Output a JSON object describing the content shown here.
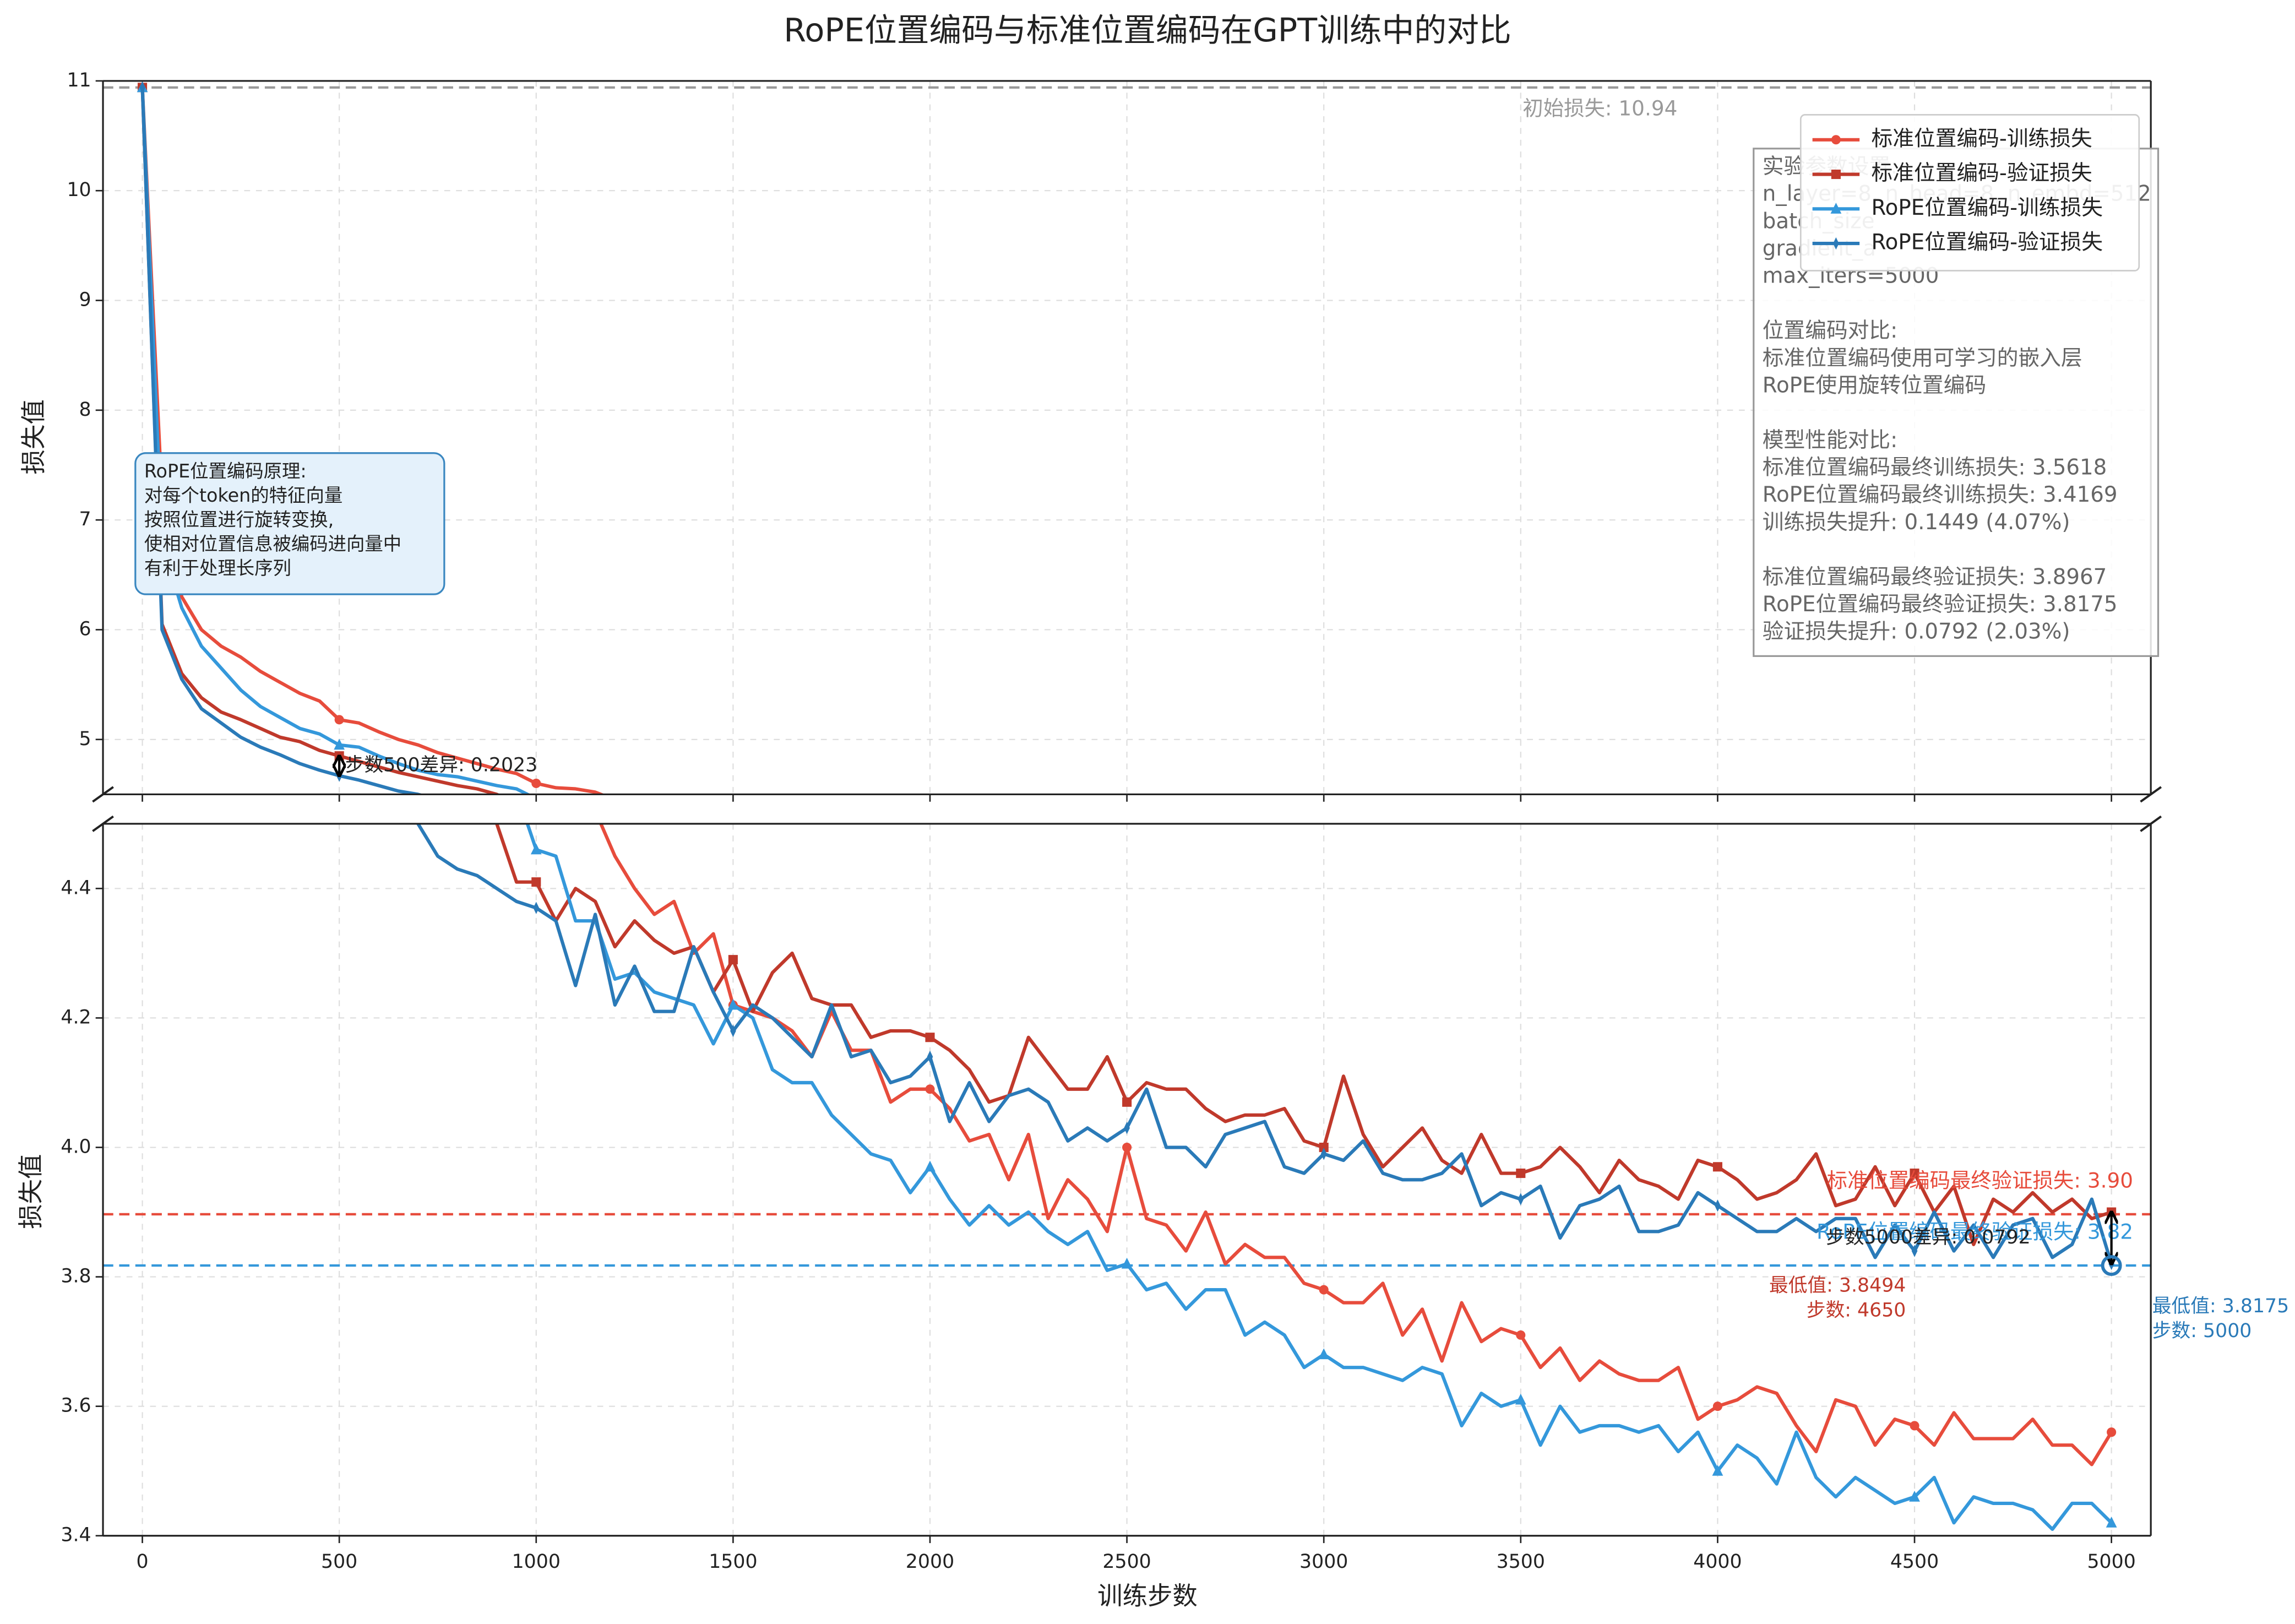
{
  "chart_data": {
    "type": "line",
    "title": "RoPE位置编码与标准位置编码在GPT训练中的对比",
    "xlabel": "训练步数",
    "ylabel": "损失值",
    "xlim": [
      -100,
      5100
    ],
    "xticks": [
      0,
      500,
      1000,
      1500,
      2000,
      2500,
      3000,
      3500,
      4000,
      4500,
      5000
    ],
    "panels": [
      {
        "ylim": [
          4.5,
          11
        ],
        "yticks": [
          5,
          6,
          7,
          8,
          9,
          10,
          11
        ]
      },
      {
        "ylim": [
          3.4,
          4.5
        ],
        "yticks": [
          3.4,
          3.6,
          3.8,
          {
            "value": 4,
            "label": "4.0"
          },
          4.2,
          4.4
        ]
      }
    ],
    "grid": true,
    "legend": "upper right",
    "x": [
      0,
      50,
      100,
      150,
      200,
      250,
      300,
      350,
      400,
      450,
      500,
      550,
      600,
      650,
      700,
      750,
      800,
      850,
      900,
      950,
      1000,
      1050,
      1100,
      1150,
      1200,
      1250,
      1300,
      1350,
      1400,
      1450,
      1500,
      1550,
      1600,
      1650,
      1700,
      1750,
      1800,
      1850,
      1900,
      1950,
      2000,
      2050,
      2100,
      2150,
      2200,
      2250,
      2300,
      2350,
      2400,
      2450,
      2500,
      2550,
      2600,
      2650,
      2700,
      2750,
      2800,
      2850,
      2900,
      2950,
      3000,
      3050,
      3100,
      3150,
      3200,
      3250,
      3300,
      3350,
      3400,
      3450,
      3500,
      3550,
      3600,
      3650,
      3700,
      3750,
      3800,
      3850,
      3900,
      3950,
      4000,
      4050,
      4100,
      4150,
      4200,
      4250,
      4300,
      4350,
      4400,
      4450,
      4500,
      4550,
      4600,
      4650,
      4700,
      4750,
      4800,
      4850,
      4900,
      4950,
      5000
    ],
    "series": [
      {
        "name": "标准位置编码-训练损失",
        "color": "#e74c3c",
        "marker": "o",
        "values": [
          10.94,
          7.2,
          6.3,
          6.0,
          5.85,
          5.75,
          5.62,
          5.52,
          5.42,
          5.35,
          5.18,
          5.15,
          5.07,
          5.0,
          4.95,
          4.88,
          4.83,
          4.78,
          4.73,
          4.69,
          4.6,
          4.56,
          4.55,
          4.52,
          4.45,
          4.4,
          4.36,
          4.38,
          4.3,
          4.33,
          4.22,
          4.21,
          4.2,
          4.18,
          4.14,
          4.21,
          4.15,
          4.15,
          4.07,
          4.09,
          4.09,
          4.06,
          4.01,
          4.02,
          3.95,
          4.02,
          3.89,
          3.95,
          3.92,
          3.87,
          4.0,
          3.89,
          3.88,
          3.84,
          3.9,
          3.82,
          3.85,
          3.83,
          3.83,
          3.79,
          3.78,
          3.76,
          3.76,
          3.79,
          3.71,
          3.75,
          3.67,
          3.76,
          3.7,
          3.72,
          3.71,
          3.66,
          3.69,
          3.64,
          3.67,
          3.65,
          3.64,
          3.64,
          3.66,
          3.58,
          3.6,
          3.61,
          3.63,
          3.62,
          3.57,
          3.53,
          3.61,
          3.6,
          3.54,
          3.58,
          3.57,
          3.54,
          3.59,
          3.55,
          3.55,
          3.55,
          3.58,
          3.54,
          3.54,
          3.51,
          3.56
        ]
      },
      {
        "name": "标准位置编码-验证损失",
        "color": "#c0392b",
        "marker": "s",
        "values": [
          10.94,
          6.05,
          5.6,
          5.38,
          5.25,
          5.18,
          5.1,
          5.02,
          4.98,
          4.9,
          4.85,
          4.8,
          4.75,
          4.7,
          4.66,
          4.62,
          4.58,
          4.55,
          4.5,
          4.41,
          4.41,
          4.35,
          4.4,
          4.38,
          4.31,
          4.35,
          4.32,
          4.3,
          4.31,
          4.24,
          4.29,
          4.21,
          4.27,
          4.3,
          4.23,
          4.22,
          4.22,
          4.17,
          4.18,
          4.18,
          4.17,
          4.15,
          4.12,
          4.07,
          4.08,
          4.17,
          4.13,
          4.09,
          4.09,
          4.14,
          4.07,
          4.1,
          4.09,
          4.09,
          4.06,
          4.04,
          4.05,
          4.05,
          4.06,
          4.01,
          4.0,
          4.11,
          4.02,
          3.97,
          4.0,
          4.03,
          3.98,
          3.96,
          4.02,
          3.96,
          3.96,
          3.97,
          4.0,
          3.97,
          3.93,
          3.98,
          3.95,
          3.94,
          3.92,
          3.98,
          3.97,
          3.95,
          3.92,
          3.93,
          3.95,
          3.99,
          3.91,
          3.92,
          3.97,
          3.91,
          3.96,
          3.9,
          3.94,
          3.85,
          3.92,
          3.9,
          3.93,
          3.9,
          3.92,
          3.89,
          3.9
        ]
      },
      {
        "name": "RoPE位置编码-训练损失",
        "color": "#3498db",
        "marker": "^",
        "values": [
          10.94,
          6.8,
          6.2,
          5.85,
          5.65,
          5.45,
          5.3,
          5.2,
          5.1,
          5.05,
          4.95,
          4.93,
          4.85,
          4.78,
          4.72,
          4.68,
          4.66,
          4.62,
          4.58,
          4.55,
          4.46,
          4.45,
          4.35,
          4.35,
          4.26,
          4.27,
          4.24,
          4.23,
          4.22,
          4.16,
          4.22,
          4.2,
          4.12,
          4.1,
          4.1,
          4.05,
          4.02,
          3.99,
          3.98,
          3.93,
          3.97,
          3.92,
          3.88,
          3.91,
          3.88,
          3.9,
          3.87,
          3.85,
          3.87,
          3.81,
          3.82,
          3.78,
          3.79,
          3.75,
          3.78,
          3.78,
          3.71,
          3.73,
          3.71,
          3.66,
          3.68,
          3.66,
          3.66,
          3.65,
          3.64,
          3.66,
          3.65,
          3.57,
          3.62,
          3.6,
          3.61,
          3.54,
          3.6,
          3.56,
          3.57,
          3.57,
          3.56,
          3.57,
          3.53,
          3.56,
          3.5,
          3.54,
          3.52,
          3.48,
          3.56,
          3.49,
          3.46,
          3.49,
          3.47,
          3.45,
          3.46,
          3.49,
          3.42,
          3.46,
          3.45,
          3.45,
          3.44,
          3.41,
          3.45,
          3.45,
          3.42
        ]
      },
      {
        "name": "RoPE位置编码-验证损失",
        "color": "#2a7ab8",
        "marker": "d",
        "values": [
          10.94,
          6.0,
          5.55,
          5.28,
          5.15,
          5.02,
          4.93,
          4.86,
          4.78,
          4.72,
          4.67,
          4.63,
          4.58,
          4.53,
          4.5,
          4.45,
          4.43,
          4.42,
          4.4,
          4.38,
          4.37,
          4.35,
          4.25,
          4.36,
          4.22,
          4.28,
          4.21,
          4.21,
          4.31,
          4.24,
          4.18,
          4.22,
          4.2,
          4.17,
          4.14,
          4.22,
          4.14,
          4.15,
          4.1,
          4.11,
          4.14,
          4.04,
          4.1,
          4.04,
          4.08,
          4.09,
          4.07,
          4.01,
          4.03,
          4.01,
          4.03,
          4.09,
          4.0,
          4.0,
          3.97,
          4.02,
          4.03,
          4.04,
          3.97,
          3.96,
          3.99,
          3.98,
          4.01,
          3.96,
          3.95,
          3.95,
          3.96,
          3.99,
          3.91,
          3.93,
          3.92,
          3.94,
          3.86,
          3.91,
          3.92,
          3.94,
          3.87,
          3.87,
          3.88,
          3.93,
          3.91,
          3.89,
          3.87,
          3.87,
          3.89,
          3.87,
          3.89,
          3.89,
          3.83,
          3.88,
          3.84,
          3.9,
          3.84,
          3.88,
          3.83,
          3.88,
          3.89,
          3.83,
          3.85,
          3.92,
          3.82
        ]
      }
    ],
    "hlines": [
      {
        "value": 10.94,
        "label": "初始损失: 10.94",
        "color": "#999999"
      },
      {
        "value": 3.8967,
        "label": "标准位置编码最终验证损失: 3.90",
        "color": "#e74c3c"
      },
      {
        "value": 3.8175,
        "label": "RoPE位置编码最终验证损失: 3.82",
        "color": "#3498db"
      }
    ],
    "diff_annotations": [
      {
        "index": 10,
        "label": "步数500差异: 0.2023"
      },
      {
        "index": 100,
        "label": "步数5000差异: 0.0792"
      }
    ],
    "min_annotations": [
      {
        "step": 4650,
        "value": 3.8494,
        "color": "#c0392b",
        "lines": [
          "最低值: 3.8494",
          "步数: 4650"
        ]
      },
      {
        "step": 5000,
        "value": 3.8175,
        "color": "#2a7ab8",
        "lines": [
          "最低值: 3.8175",
          "步数: 5000"
        ]
      }
    ],
    "principle_box": [
      "RoPE位置编码原理:",
      "对每个token的特征向量",
      "按照位置进行旋转变换,",
      "使相对位置信息被编码进向量中",
      "有利于处理长序列"
    ],
    "info_box": [
      [
        "实验参数设置:",
        "n_layer=8, n_head=8, n_embd=512",
        "batch_size",
        "gradient_a",
        "max_iters=5000"
      ],
      [
        "位置编码对比:",
        "标准位置编码使用可学习的嵌入层",
        "RoPE使用旋转位置编码"
      ],
      [
        "模型性能对比:",
        "标准位置编码最终训练损失: 3.5618",
        "RoPE位置编码最终训练损失: 3.4169",
        "训练损失提升: 0.1449 (4.07%)"
      ],
      [
        "标准位置编码最终验证损失: 3.8967",
        "RoPE位置编码最终验证损失: 3.8175",
        "验证损失提升: 0.0792 (2.03%)"
      ]
    ]
  }
}
